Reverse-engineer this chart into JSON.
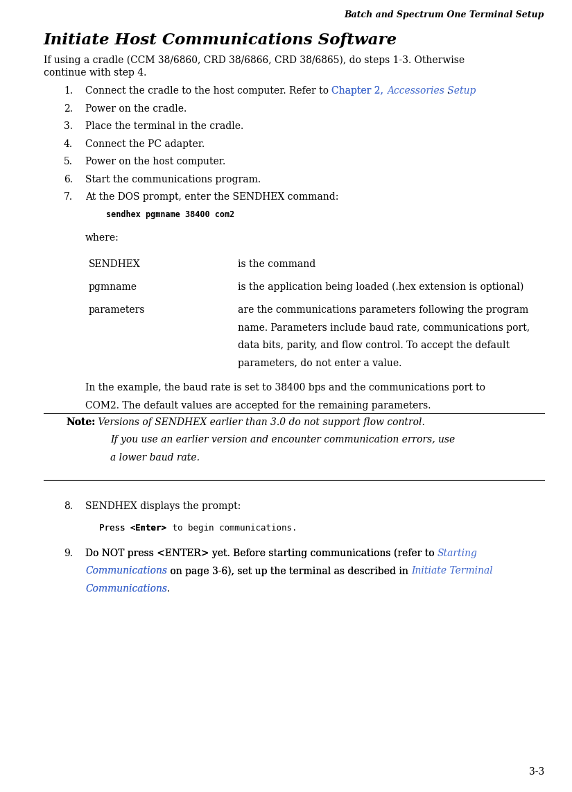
{
  "page_header": "Batch and Spectrum One Terminal Setup",
  "page_number": "3-3",
  "section_title": "Initiate Host Communications Software",
  "intro_line1": "If using a cradle (CCM 38/6860, CRD 38/6866, CRD 38/6865), do steps 1-3. Otherwise",
  "intro_line2": "continue with step 4.",
  "items_1_6": [
    "Connect the cradle to the host computer. Refer to ",
    "Power on the cradle.",
    "Place the terminal in the cradle.",
    "Connect the PC adapter.",
    "Power on the host computer.",
    "Start the communications program."
  ],
  "item7_text": "At the DOS prompt, enter the SENDHEX command:",
  "code_line": "sendhex pgmname 38400 com2",
  "where_text": "where:",
  "table_rows": [
    {
      "term": "SENDHEX",
      "def": "is the command"
    },
    {
      "term": "pgmname",
      "def": "is the application being loaded (.hex extension is optional)"
    },
    {
      "term": "parameters",
      "def_lines": [
        "are the communications parameters following the program",
        "name. Parameters include baud rate, communications port,",
        "data bits, parity, and flow control. To accept the default",
        "parameters, do not enter a value."
      ]
    }
  ],
  "example_line1": "In the example, the baud rate is set to 38400 bps and the communications port to",
  "example_line2": "COM2. The default values are accepted for the remaining parameters.",
  "note_label": "Note:",
  "note_line1": "Versions of SENDHEX earlier than 3.0 do not support flow control.",
  "note_line2": "If you use an earlier version and encounter communication errors, use",
  "note_line3": "a lower baud rate.",
  "item8_text": "SENDHEX displays the prompt:",
  "item8_code_pre": "Press <",
  "item8_code_bold": "Enter>",
  "item8_code_post": " to begin communications.",
  "item9_seg1": "Do NOT press <ENTER> yet. Before starting communications (refer to ",
  "item9_link1": "Starting",
  "item9_seg2": "",
  "item9_link2": "Communications",
  "item9_seg3": " on page 3-6), set up the terminal as described in ",
  "item9_link3": "Initiate Terminal",
  "item9_seg4": "",
  "item9_link4": "Communications",
  "item9_seg5": ".",
  "link_color": "#4169cd",
  "bg_color": "#ffffff",
  "text_color": "#000000"
}
